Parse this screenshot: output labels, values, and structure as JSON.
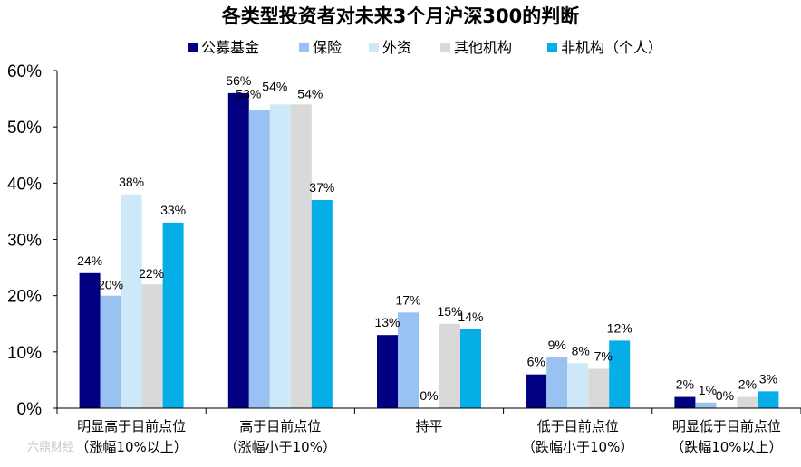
{
  "chart_data": {
    "type": "bar",
    "title": "各类型投资者对未来3个月沪深300的判断",
    "ylim": [
      0,
      60
    ],
    "yticks": [
      0,
      10,
      20,
      30,
      40,
      50,
      60
    ],
    "ytick_labels": [
      "0%",
      "10%",
      "20%",
      "30%",
      "40%",
      "50%",
      "60%"
    ],
    "grid": false,
    "legend_position": "top",
    "categories": [
      [
        "明显高于目前点位",
        "（涨幅10%以上）"
      ],
      [
        "高于目前点位",
        "（涨幅小于10%）"
      ],
      [
        "持平"
      ],
      [
        "低于目前点位",
        "（跌幅小于10%）"
      ],
      [
        "明显低于目前点位",
        "（跌幅10%以上）"
      ]
    ],
    "series": [
      {
        "name": "公募基金",
        "color": "#000080",
        "values": [
          24,
          56,
          13,
          6,
          2
        ],
        "labels": [
          "24%",
          "56%",
          "13%",
          "6%",
          "2%"
        ]
      },
      {
        "name": "保险",
        "color": "#99c2f2",
        "values": [
          20,
          53,
          17,
          9,
          1
        ],
        "labels": [
          "20%",
          "53%",
          "17%",
          "9%",
          "1%"
        ]
      },
      {
        "name": "外资",
        "color": "#cde8f8",
        "values": [
          38,
          54,
          0,
          8,
          0
        ],
        "labels": [
          "38%",
          "54%",
          "0%",
          "8%",
          "0%"
        ]
      },
      {
        "name": "其他机构",
        "color": "#d9d9d9",
        "values": [
          22,
          54,
          15,
          7,
          2
        ],
        "labels": [
          "22%",
          "54%",
          "15%",
          "7%",
          "2%"
        ]
      },
      {
        "name": "非机构（个人）",
        "color": "#06aee8",
        "values": [
          33,
          37,
          14,
          12,
          3
        ],
        "labels": [
          "33%",
          "37%",
          "14%",
          "12%",
          "3%"
        ]
      }
    ]
  },
  "watermark": "六鼎财经"
}
